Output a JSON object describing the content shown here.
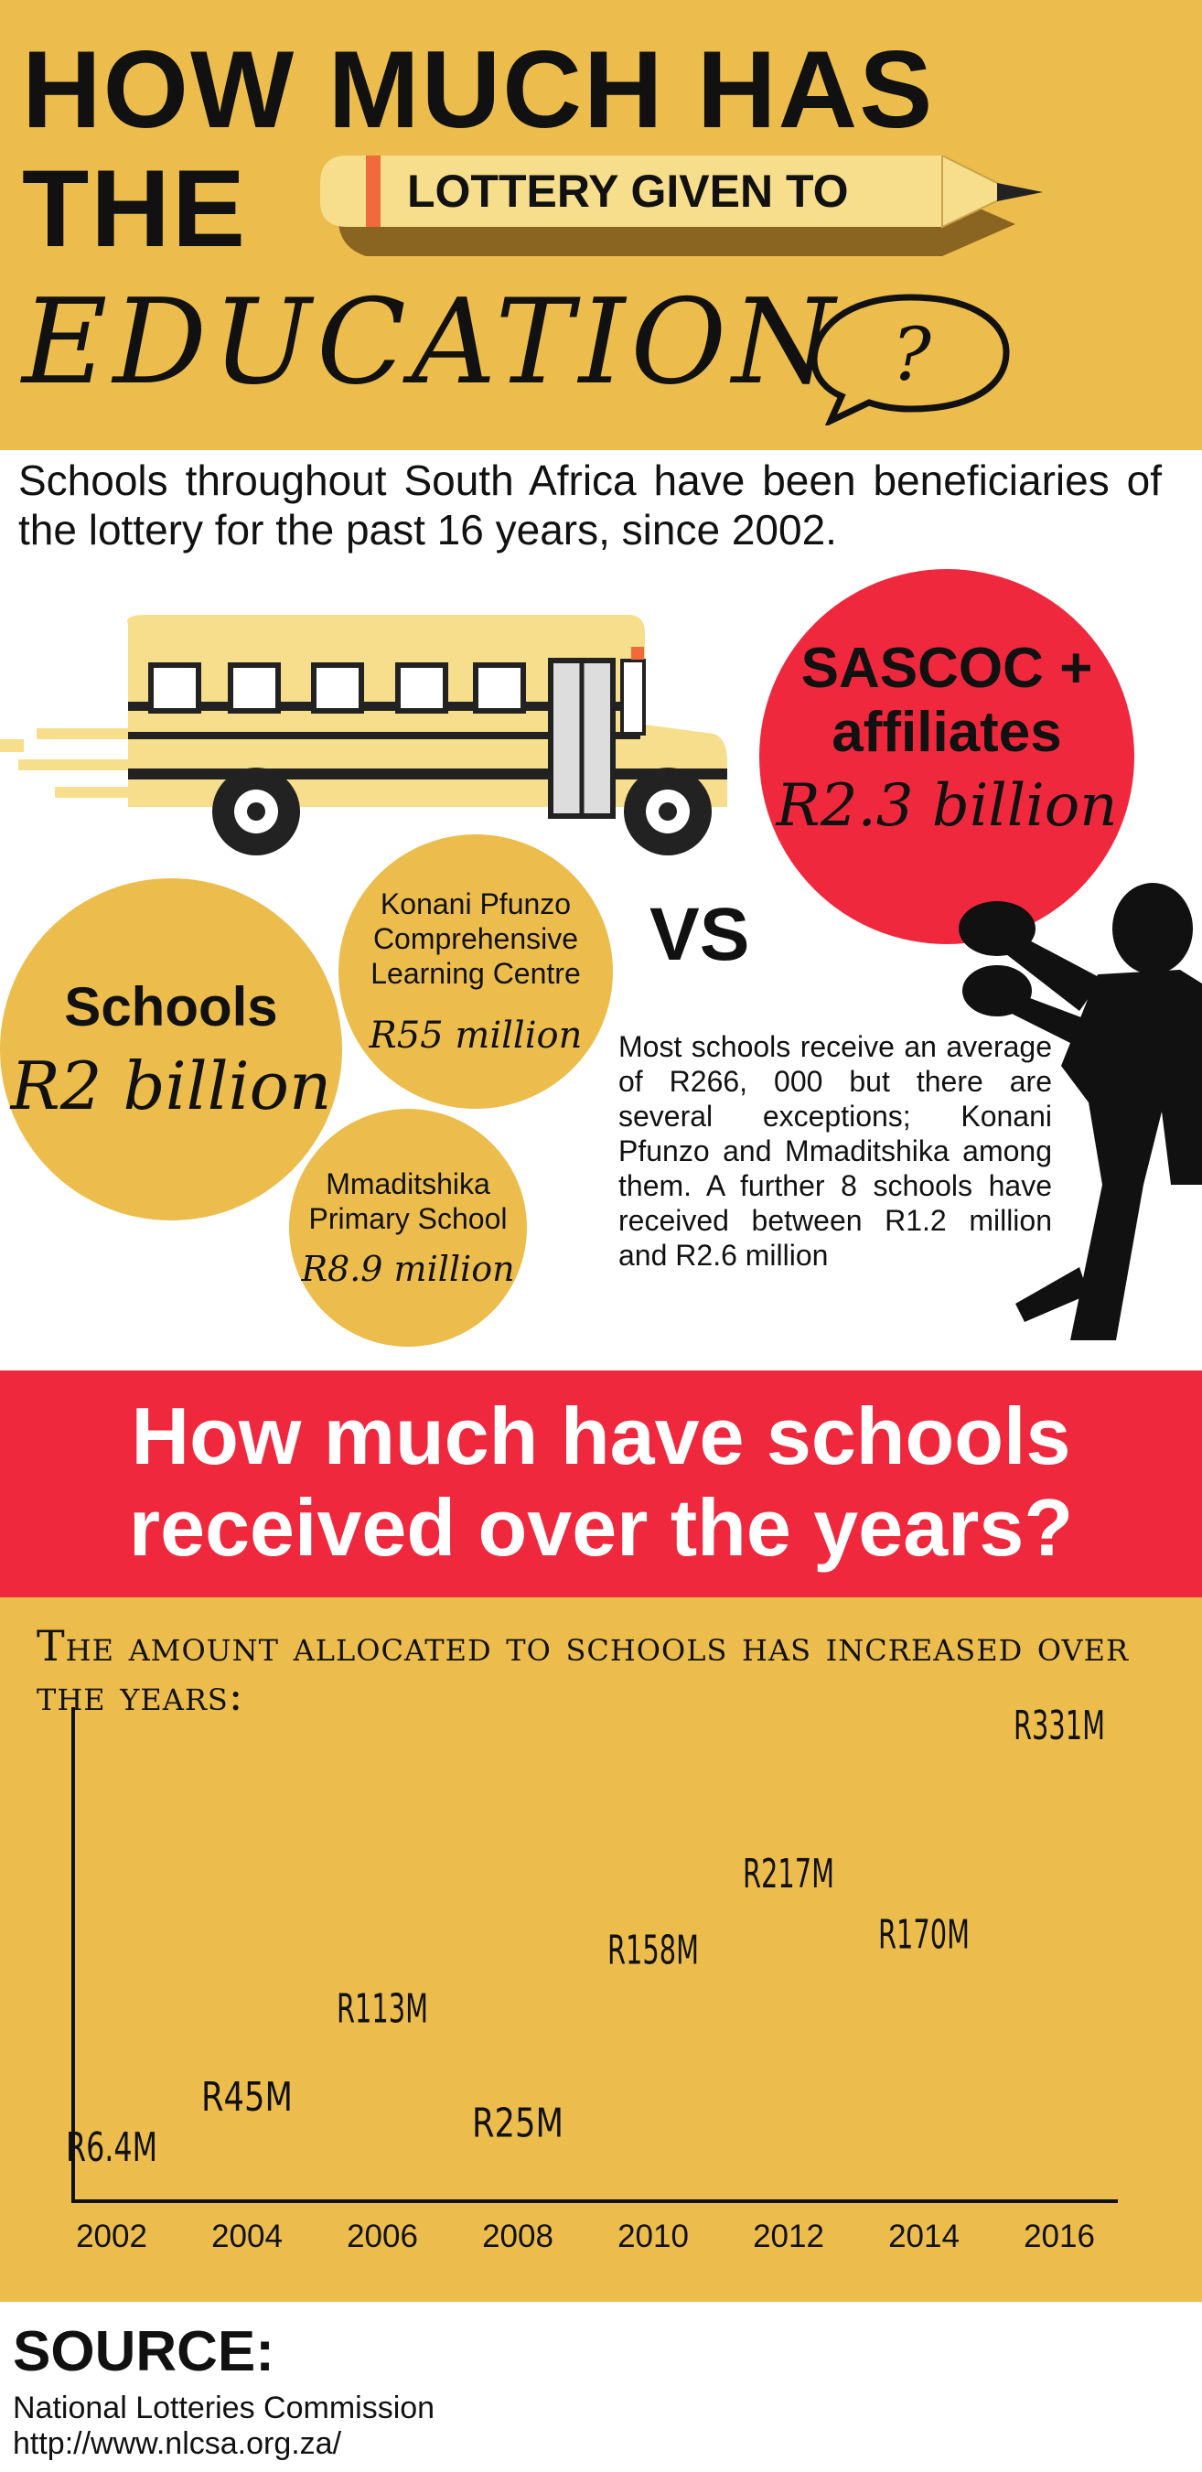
{
  "header": {
    "line1": "HOW MUCH HAS",
    "line2": "THE",
    "pencil_text": "LOTTERY GIVEN TO",
    "line3": "EDUCATION"
  },
  "intro": "Schools throughout South Africa have been beneficiaries of the lottery for the past 16 years, since 2002.",
  "sascoc": {
    "name": "SASCOC + affiliates",
    "amount": "R2.3 billion"
  },
  "schools": {
    "name": "Schools",
    "amount": "R2 billion"
  },
  "konani": {
    "name": "Konani Pfunzo Comprehensive Learning Centre",
    "amount": "R55 million"
  },
  "mmaditshika": {
    "name": "Mmaditshika Primary School",
    "amount": "R8.9 million"
  },
  "vs": "VS",
  "note": "Most schools receive an average of R266, 000 but there are several exceptions; Konani Pfunzo and Mmaditshika among them. A further 8 schools have received between R1.2 million and R2.6 million",
  "band_title": "How much have schools received over the years?",
  "chart_data": {
    "type": "scatter",
    "title": "The amount allocated to schools has increased over the years:",
    "x": [
      2002,
      2004,
      2006,
      2008,
      2010,
      2012,
      2014,
      2016
    ],
    "points": [
      {
        "year": 2002,
        "value": 6.4,
        "label": "R6.4M"
      },
      {
        "year": 2004,
        "value": 45,
        "label": "R45M"
      },
      {
        "year": 2006,
        "value": 113,
        "label": "R113M"
      },
      {
        "year": 2008,
        "value": 25,
        "label": "R25M"
      },
      {
        "year": 2010,
        "value": 158,
        "label": "R158M"
      },
      {
        "year": 2012,
        "value": 217,
        "label": "R217M"
      },
      {
        "year": 2014,
        "value": 170,
        "label": "R170M"
      },
      {
        "year": 2016,
        "value": 331,
        "label": "R331M"
      }
    ],
    "ylim": [
      0,
      331
    ]
  },
  "source": {
    "title": "SOURCE:",
    "org": "National Lotteries Commission",
    "url": "http://www.nlcsa.org.za/"
  },
  "colors": {
    "yellow": "#ECBD4D",
    "red": "#F0283E",
    "black": "#111111"
  }
}
